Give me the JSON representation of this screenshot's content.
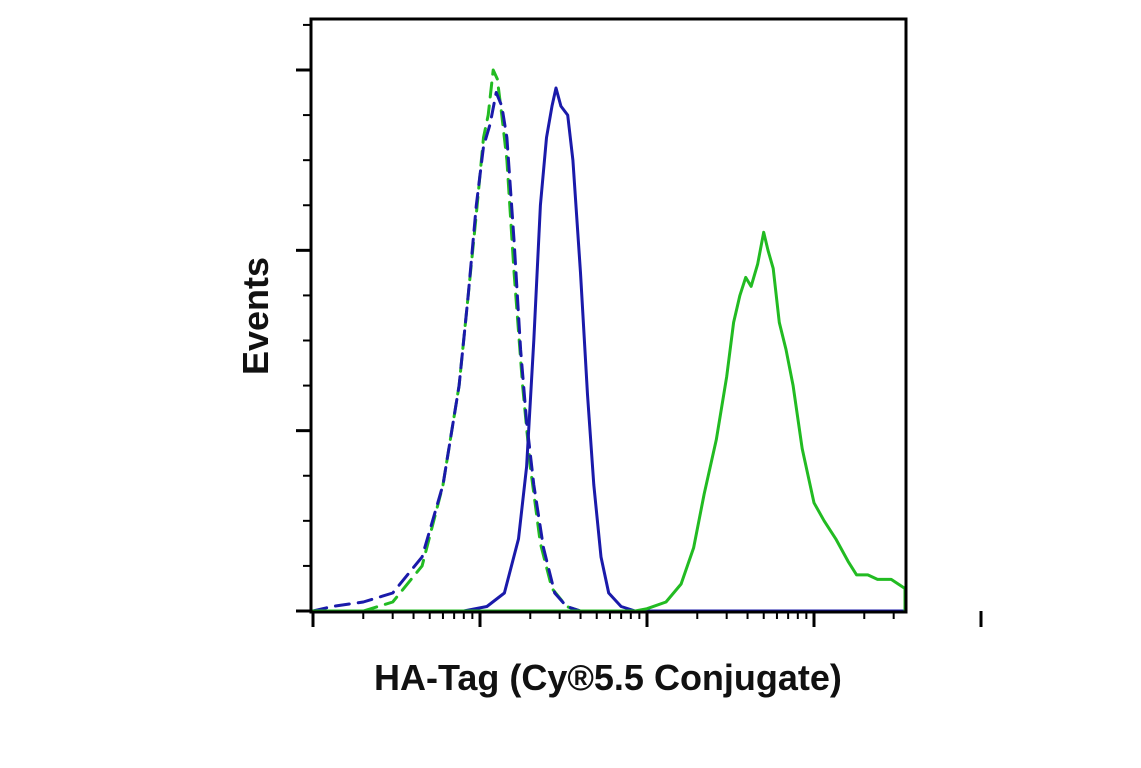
{
  "chart_data": {
    "type": "line",
    "title": "",
    "xlabel": "HA-Tag (Cy®5.5 Conjugate)",
    "ylabel": "Events",
    "x_scale": "log",
    "xlim": [
      0.1,
      10000
    ],
    "ylim": [
      0,
      120
    ],
    "grid": false,
    "legend": "none",
    "series": [
      {
        "color": "#22bb22",
        "dash": true,
        "points": [
          [
            0.2,
            0
          ],
          [
            0.3,
            2
          ],
          [
            0.45,
            10
          ],
          [
            0.6,
            28
          ],
          [
            0.75,
            50
          ],
          [
            0.85,
            70
          ],
          [
            0.95,
            88
          ],
          [
            1.05,
            105
          ],
          [
            1.12,
            110
          ],
          [
            1.2,
            120
          ],
          [
            1.27,
            118
          ],
          [
            1.35,
            110
          ],
          [
            1.45,
            100
          ],
          [
            1.6,
            75
          ],
          [
            1.8,
            50
          ],
          [
            2,
            32
          ],
          [
            2.3,
            15
          ],
          [
            2.7,
            5
          ],
          [
            3.3,
            1
          ],
          [
            4,
            0
          ],
          [
            10000,
            0
          ]
        ]
      },
      {
        "color": "#1a1aaa",
        "dash": true,
        "points": [
          [
            0.1,
            0
          ],
          [
            0.13,
            1
          ],
          [
            0.2,
            2
          ],
          [
            0.3,
            4
          ],
          [
            0.45,
            12
          ],
          [
            0.6,
            28
          ],
          [
            0.75,
            50
          ],
          [
            0.85,
            70
          ],
          [
            0.95,
            90
          ],
          [
            1.05,
            103
          ],
          [
            1.15,
            108
          ],
          [
            1.25,
            115
          ],
          [
            1.35,
            112
          ],
          [
            1.45,
            105
          ],
          [
            1.6,
            82
          ],
          [
            1.75,
            58
          ],
          [
            1.9,
            42
          ],
          [
            2.1,
            28
          ],
          [
            2.4,
            14
          ],
          [
            2.8,
            4
          ],
          [
            3.3,
            1
          ],
          [
            4,
            0
          ],
          [
            10000,
            0
          ]
        ]
      },
      {
        "color": "#1a1aaa",
        "dash": false,
        "points": [
          [
            0.1,
            0
          ],
          [
            0.8,
            0
          ],
          [
            1.1,
            1
          ],
          [
            1.4,
            4
          ],
          [
            1.7,
            16
          ],
          [
            1.9,
            32
          ],
          [
            2.1,
            60
          ],
          [
            2.3,
            90
          ],
          [
            2.5,
            105
          ],
          [
            2.7,
            112
          ],
          [
            2.85,
            116
          ],
          [
            3.05,
            112
          ],
          [
            3.35,
            110
          ],
          [
            3.6,
            100
          ],
          [
            4,
            75
          ],
          [
            4.4,
            48
          ],
          [
            4.8,
            28
          ],
          [
            5.3,
            12
          ],
          [
            5.9,
            4
          ],
          [
            7,
            1
          ],
          [
            8.5,
            0
          ],
          [
            10000,
            0
          ]
        ]
      },
      {
        "color": "#22bb22",
        "dash": false,
        "points": [
          [
            0.1,
            0
          ],
          [
            8.5,
            0
          ],
          [
            10,
            0.5
          ],
          [
            13,
            2
          ],
          [
            16,
            6
          ],
          [
            19,
            14
          ],
          [
            22,
            26
          ],
          [
            26,
            38
          ],
          [
            30,
            52
          ],
          [
            33,
            64
          ],
          [
            36,
            70
          ],
          [
            39,
            74
          ],
          [
            42,
            72
          ],
          [
            46,
            77
          ],
          [
            50,
            84
          ],
          [
            53,
            80
          ],
          [
            57,
            76
          ],
          [
            62,
            64
          ],
          [
            68,
            58
          ],
          [
            75,
            50
          ],
          [
            85,
            36
          ],
          [
            100,
            24
          ],
          [
            115,
            20
          ],
          [
            135,
            16
          ],
          [
            160,
            11
          ],
          [
            180,
            8
          ],
          [
            210,
            8
          ],
          [
            240,
            7
          ],
          [
            290,
            7
          ],
          [
            360,
            5
          ],
          [
            440,
            3
          ],
          [
            560,
            1
          ],
          [
            700,
            0
          ],
          [
            10000,
            0
          ]
        ]
      }
    ]
  }
}
